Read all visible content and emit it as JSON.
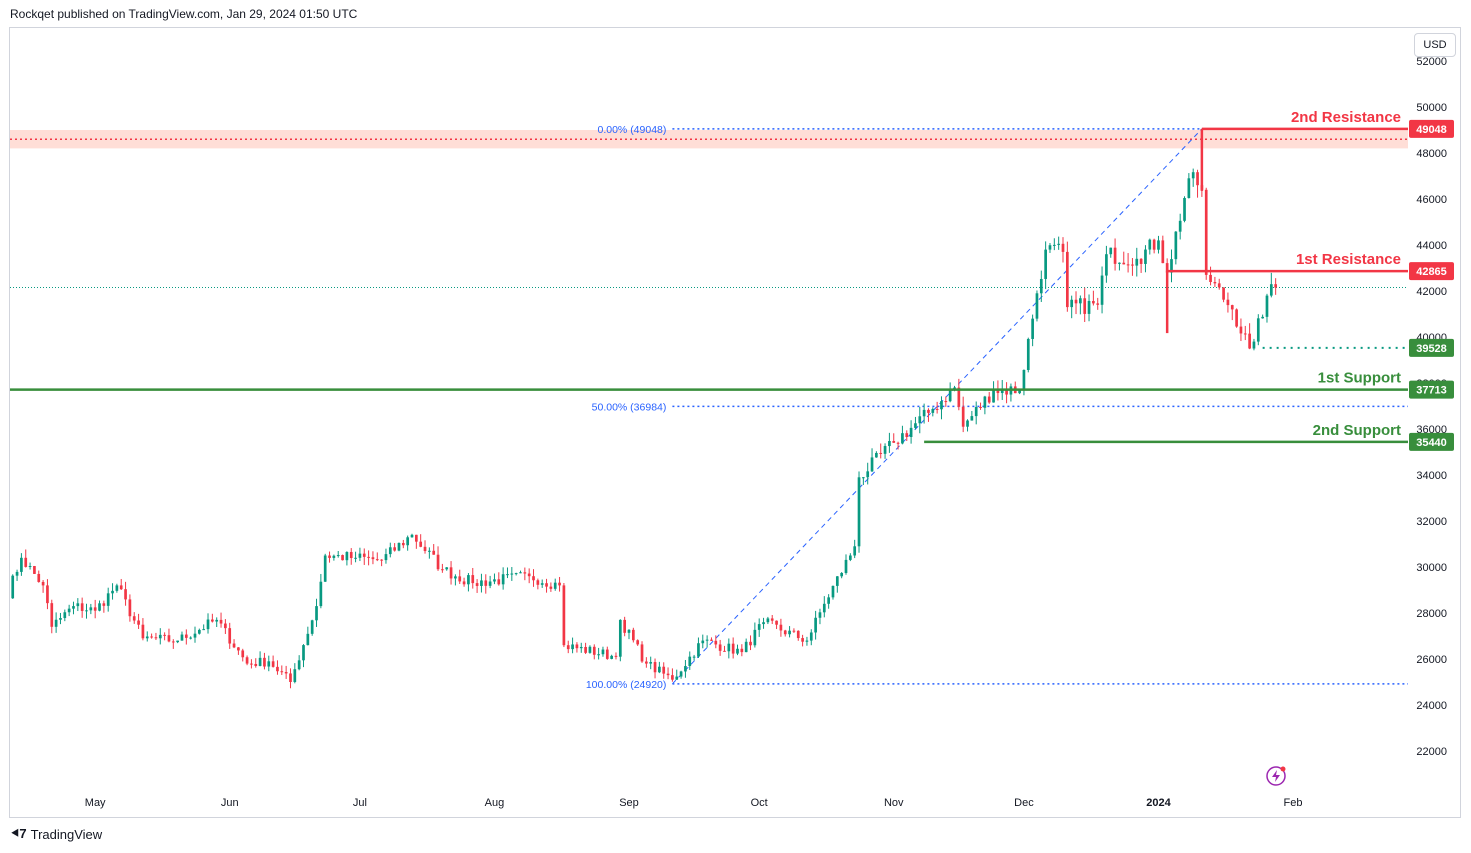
{
  "header": {
    "published": "Rockqet published on TradingView.com, Jan 29, 2024 01:50 UTC"
  },
  "currency_button": "USD",
  "footer": {
    "brand": "TradingView"
  },
  "colors": {
    "up": "#089981",
    "down": "#f23645",
    "support": "#388e3c",
    "resistance": "#f23645",
    "fib": "#2962ff",
    "zone": "#ffd8d0"
  },
  "chart_data": {
    "type": "candlestick",
    "symbol_currency": "USD",
    "y_ticks": [
      22000,
      24000,
      26000,
      28000,
      30000,
      32000,
      34000,
      36000,
      38000,
      40000,
      42000,
      44000,
      46000,
      48000,
      50000,
      52000
    ],
    "x_ticks": [
      {
        "label": "May",
        "date": "2023-05-01"
      },
      {
        "label": "Jun",
        "date": "2023-06-01"
      },
      {
        "label": "Jul",
        "date": "2023-07-01"
      },
      {
        "label": "Aug",
        "date": "2023-08-01"
      },
      {
        "label": "Sep",
        "date": "2023-09-01"
      },
      {
        "label": "Oct",
        "date": "2023-10-01"
      },
      {
        "label": "Nov",
        "date": "2023-11-01"
      },
      {
        "label": "Dec",
        "date": "2023-12-01"
      },
      {
        "label": "2024",
        "date": "2024-01-01",
        "bold": true
      },
      {
        "label": "Feb",
        "date": "2024-02-01"
      }
    ],
    "levels": [
      {
        "label": "2nd Resistance",
        "value": 49048,
        "tag": "49048",
        "kind": "resistance",
        "from": "2024-01-11"
      },
      {
        "label": "1st Resistance",
        "value": 42865,
        "tag": "42865",
        "kind": "resistance",
        "from": "2024-01-03"
      },
      {
        "label": "1st Support",
        "value": 37713,
        "tag": "37713",
        "kind": "support",
        "from": "2023-04-10"
      },
      {
        "label": "2nd Support",
        "value": 35440,
        "tag": "35440",
        "kind": "support",
        "from": "2023-11-08"
      }
    ],
    "dotted_level": {
      "value": 39528,
      "tag": "39528",
      "from": "2024-01-25"
    },
    "resistance_zone": {
      "low": 48200,
      "high": 49000,
      "mid": 48600
    },
    "last_price": 42150,
    "fibonacci": [
      {
        "label": "0.00% (49048)",
        "value": 49048
      },
      {
        "label": "50.00% (36984)",
        "value": 36984
      },
      {
        "label": "100.00% (24920)",
        "value": 24920
      }
    ],
    "fib_trend": {
      "start": {
        "date": "2023-09-11",
        "value": 24920
      },
      "end": {
        "date": "2024-01-11",
        "value": 49048
      }
    },
    "ohlc_anchors": [
      [
        "2023-04-10",
        28400
      ],
      [
        "2023-04-14",
        30400
      ],
      [
        "2023-04-19",
        29200
      ],
      [
        "2023-04-21",
        27400
      ],
      [
        "2023-04-26",
        28300
      ],
      [
        "2023-05-01",
        28100
      ],
      [
        "2023-05-06",
        29200
      ],
      [
        "2023-05-12",
        26900
      ],
      [
        "2023-05-20",
        26800
      ],
      [
        "2023-05-29",
        27700
      ],
      [
        "2023-06-05",
        25800
      ],
      [
        "2023-06-10",
        25900
      ],
      [
        "2023-06-15",
        25000
      ],
      [
        "2023-06-21",
        28300
      ],
      [
        "2023-06-23",
        30500
      ],
      [
        "2023-06-30",
        30400
      ],
      [
        "2023-07-06",
        30300
      ],
      [
        "2023-07-13",
        31400
      ],
      [
        "2023-07-20",
        29900
      ],
      [
        "2023-07-27",
        29300
      ],
      [
        "2023-08-09",
        29600
      ],
      [
        "2023-08-16",
        29200
      ],
      [
        "2023-08-17",
        26600
      ],
      [
        "2023-08-29",
        26100
      ],
      [
        "2023-08-30",
        27700
      ],
      [
        "2023-09-05",
        25800
      ],
      [
        "2023-09-11",
        25100
      ],
      [
        "2023-09-18",
        26800
      ],
      [
        "2023-09-27",
        26300
      ],
      [
        "2023-10-02",
        27600
      ],
      [
        "2023-10-12",
        26800
      ],
      [
        "2023-10-16",
        28400
      ],
      [
        "2023-10-23",
        30900
      ],
      [
        "2023-10-24",
        33900
      ],
      [
        "2023-11-01",
        35400
      ],
      [
        "2023-11-09",
        36700
      ],
      [
        "2023-11-15",
        37800
      ],
      [
        "2023-11-17",
        36100
      ],
      [
        "2023-11-24",
        37700
      ],
      [
        "2023-11-30",
        37700
      ],
      [
        "2023-12-04",
        41900
      ],
      [
        "2023-12-06",
        43800
      ],
      [
        "2023-12-10",
        43700
      ],
      [
        "2023-12-11",
        41300
      ],
      [
        "2023-12-18",
        41400
      ],
      [
        "2023-12-20",
        43600
      ],
      [
        "2023-12-27",
        43400
      ],
      [
        "2024-01-01",
        44200
      ],
      [
        "2024-01-03",
        42800
      ],
      [
        "2024-01-08",
        46900
      ],
      [
        "2024-01-10",
        46600
      ],
      [
        "2024-01-11",
        46400
      ],
      [
        "2024-01-12",
        42700
      ],
      [
        "2024-01-18",
        41200
      ],
      [
        "2024-01-22",
        39500
      ],
      [
        "2024-01-23",
        39800
      ],
      [
        "2024-01-26",
        41800
      ],
      [
        "2024-01-28",
        42150
      ]
    ]
  }
}
